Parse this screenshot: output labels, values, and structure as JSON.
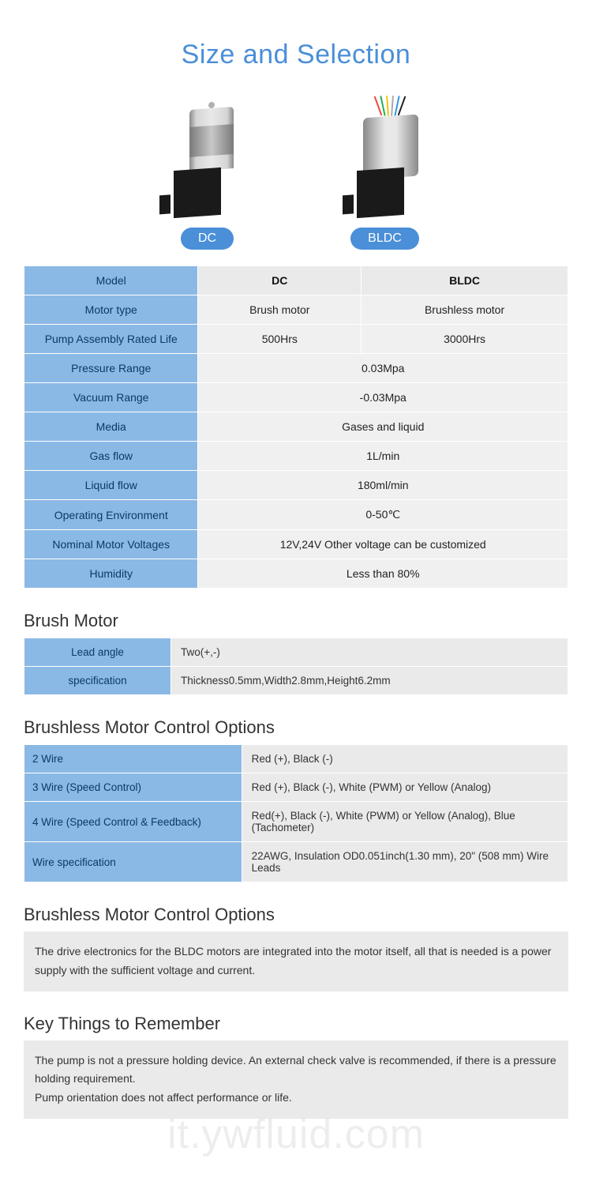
{
  "colors": {
    "accent": "#4a8fd8",
    "header_bg": "#8bb9e5",
    "header_text": "#0a3a6a",
    "cell_bg": "#f0f0f0",
    "cell_bg_alt": "#eaeaea",
    "border": "#ffffff"
  },
  "title": "Size and Selection",
  "products": [
    {
      "label": "DC"
    },
    {
      "label": "BLDC"
    }
  ],
  "spec_table": {
    "columns": [
      "Model",
      "DC",
      "BLDC"
    ],
    "rows": [
      {
        "label": "Motor type",
        "dc": "Brush motor",
        "bldc": "Brushless motor",
        "merged": false
      },
      {
        "label": "Pump Assembly Rated Life",
        "dc": "500Hrs",
        "bldc": "3000Hrs",
        "merged": false
      },
      {
        "label": "Pressure Range",
        "value": "0.03Mpa",
        "merged": true
      },
      {
        "label": "Vacuum Range",
        "value": "-0.03Mpa",
        "merged": true
      },
      {
        "label": "Media",
        "value": "Gases and liquid",
        "merged": true
      },
      {
        "label": "Gas flow",
        "value": "1L/min",
        "merged": true
      },
      {
        "label": "Liquid flow",
        "value": "180ml/min",
        "merged": true
      },
      {
        "label": "Operating Environment",
        "value": "0-50℃",
        "merged": true
      },
      {
        "label": "Nominal Motor Voltages",
        "value": "12V,24V Other voltage can be customized",
        "merged": true
      },
      {
        "label": "Humidity",
        "value": "Less than 80%",
        "merged": true
      }
    ]
  },
  "brush_motor": {
    "title": "Brush Motor",
    "rows": [
      {
        "label": "Lead angle",
        "value": "Two(+,-)"
      },
      {
        "label": "specification",
        "value": "Thickness0.5mm,Width2.8mm,Height6.2mm"
      }
    ]
  },
  "bldc_options": {
    "title": "Brushless Motor Control Options",
    "rows": [
      {
        "label": "2 Wire",
        "value": "Red (+), Black (-)"
      },
      {
        "label": "3 Wire (Speed Control)",
        "value": "Red (+), Black (-), White (PWM) or Yellow (Analog)"
      },
      {
        "label": "4 Wire (Speed Control & Feedback)",
        "value": "Red(+), Black (-), White (PWM) or Yellow (Analog), Blue (Tachometer)"
      },
      {
        "label": "Wire specification",
        "value": "22AWG, Insulation OD0.051inch(1.30 mm), 20\" (508 mm) Wire Leads"
      }
    ]
  },
  "bldc_note": {
    "title": "Brushless Motor Control Options",
    "text": "The drive electronics for the BLDC motors are integrated into the motor itself, all that is needed is a power supply with the sufficient voltage and current."
  },
  "key_things": {
    "title": "Key Things to Remember",
    "lines": [
      "The pump is not a pressure holding device. An external check valve is recommended, if there is a pressure holding requirement.",
      "Pump orientation does not affect performance or life."
    ]
  },
  "watermark": "it.ywfluid.com"
}
